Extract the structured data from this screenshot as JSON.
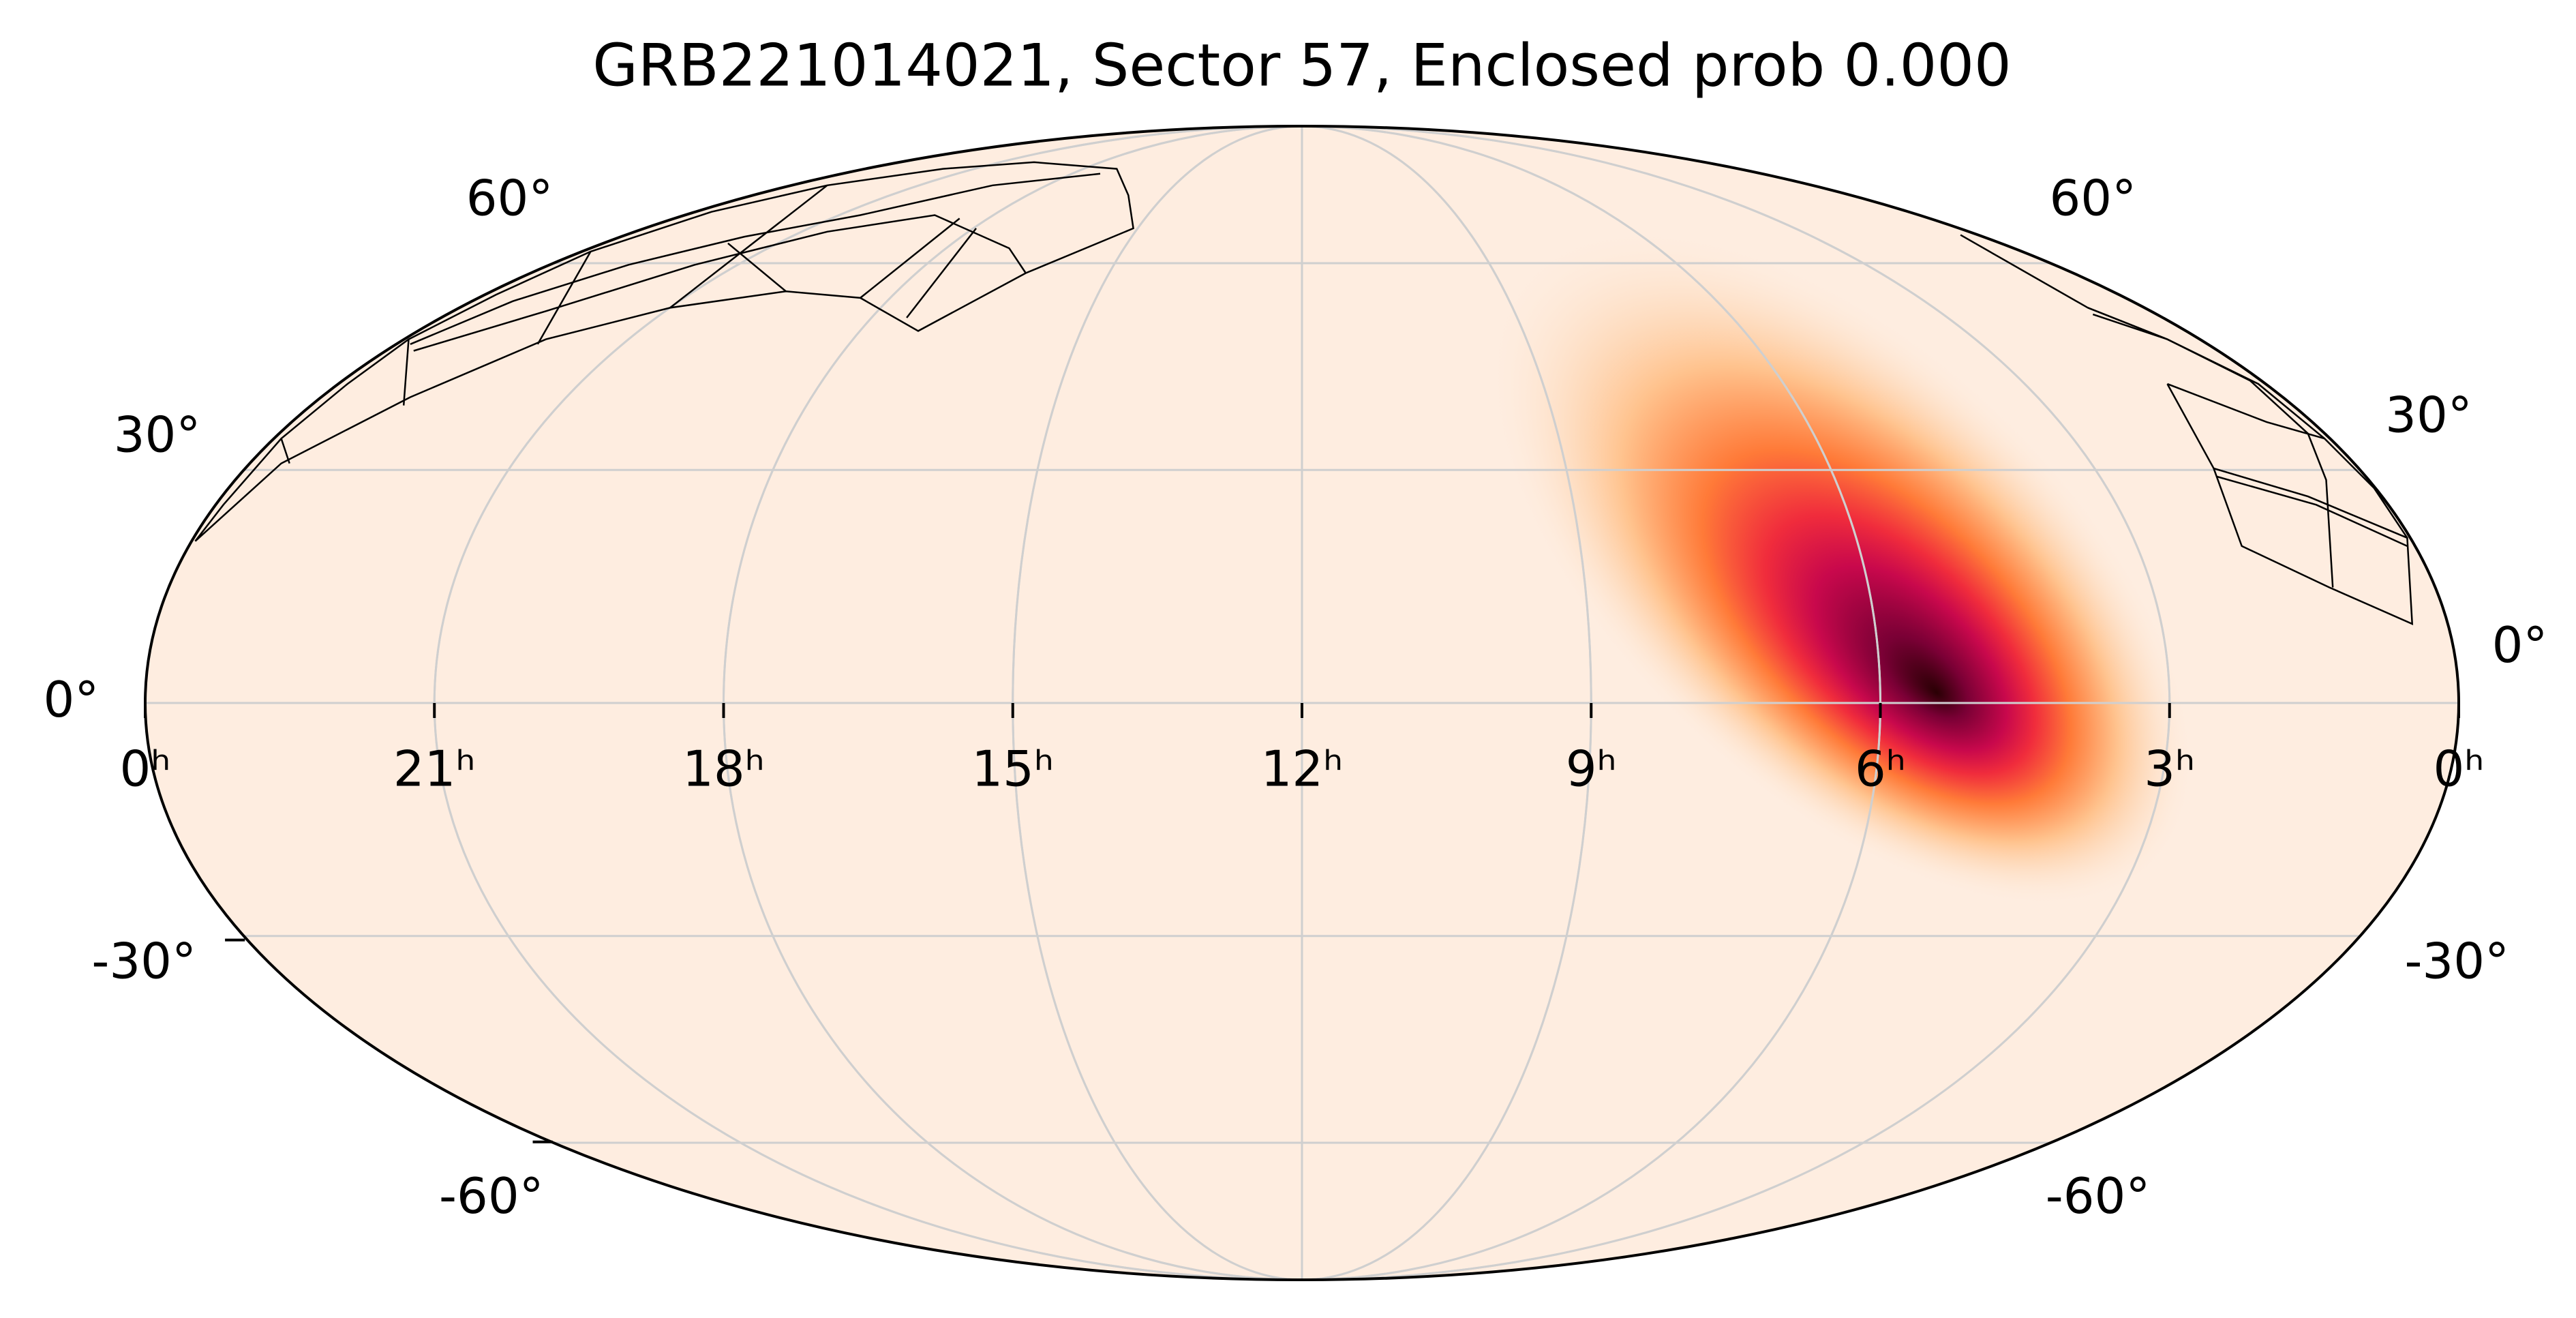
{
  "title": "GRB221014021, Sector 57, Enclosed prob 0.000",
  "ra_labels": [
    "0ʰ",
    "21ʰ",
    "18ʰ",
    "15ʰ",
    "12ʰ",
    "9ʰ",
    "6ʰ",
    "3ʰ",
    "0ʰ"
  ],
  "dec_labels_left": [
    "60°",
    "30°",
    "0°",
    "-30°",
    "-60°"
  ],
  "dec_labels_right": [
    "60°",
    "30°",
    "0°",
    "-30°",
    "-60°"
  ]
}
